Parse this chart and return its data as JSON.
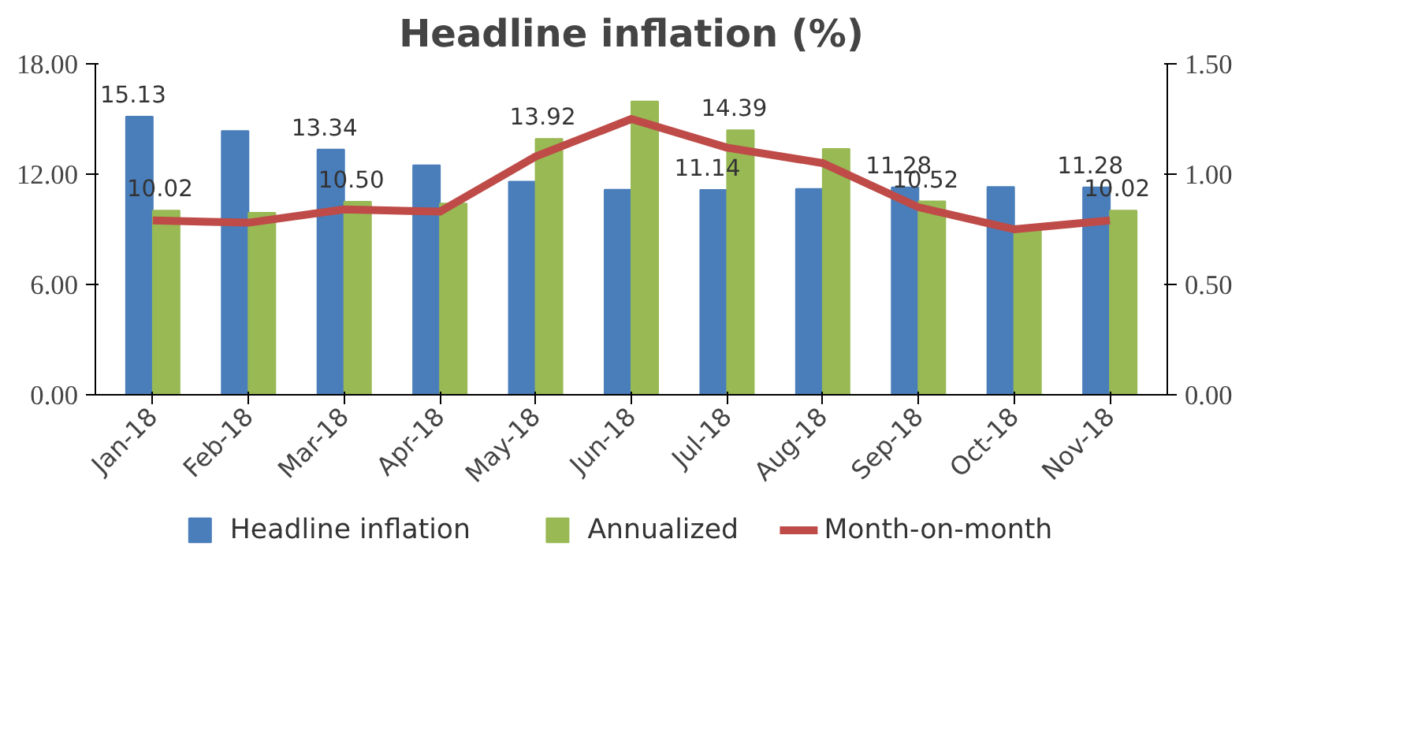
{
  "chart_data": {
    "type": "bar",
    "title": "Headline inflation (%)",
    "categories": [
      "Jan-18",
      "Feb-18",
      "Mar-18",
      "Apr-18",
      "May-18",
      "Jun-18",
      "Jul-18",
      "Aug-18",
      "Sep-18",
      "Oct-18",
      "Nov-18"
    ],
    "series": [
      {
        "name": "Headline inflation",
        "color": "#4a7ebb",
        "values": [
          15.13,
          14.35,
          13.34,
          12.48,
          11.59,
          11.15,
          11.14,
          11.2,
          11.28,
          11.3,
          11.28
        ],
        "value_labels": [
          "15.13",
          null,
          "13.34",
          null,
          null,
          null,
          "11.14",
          null,
          "11.28",
          null,
          "11.28"
        ]
      },
      {
        "name": "Annualized",
        "color": "#98b954",
        "values": [
          10.02,
          9.9,
          10.5,
          10.4,
          13.92,
          15.95,
          14.39,
          13.37,
          10.52,
          9.0,
          10.02
        ],
        "value_labels": [
          "10.02",
          null,
          "10.50",
          null,
          "13.92",
          null,
          "14.39",
          null,
          "10.52",
          null,
          "10.02"
        ]
      },
      {
        "name": "Month-on-month",
        "type": "line",
        "axis": "y2",
        "color": "#be4b48",
        "values": [
          0.79,
          0.78,
          0.84,
          0.83,
          1.08,
          1.25,
          1.12,
          1.05,
          0.85,
          0.75,
          0.79
        ]
      }
    ],
    "ylim": [
      0,
      18
    ],
    "yticks": [
      {
        "value": 0,
        "label": "0.00"
      },
      {
        "value": 6,
        "label": "6.00"
      },
      {
        "value": 12,
        "label": "12.00"
      },
      {
        "value": 18,
        "label": "18.00"
      }
    ],
    "y2lim": [
      0,
      1.5
    ],
    "y2ticks": [
      {
        "value": 0,
        "label": "0.00"
      },
      {
        "value": 0.5,
        "label": "0.50"
      },
      {
        "value": 1,
        "label": "1.00"
      },
      {
        "value": 1.5,
        "label": "1.50"
      }
    ],
    "grid": false,
    "legend": "bottom"
  }
}
